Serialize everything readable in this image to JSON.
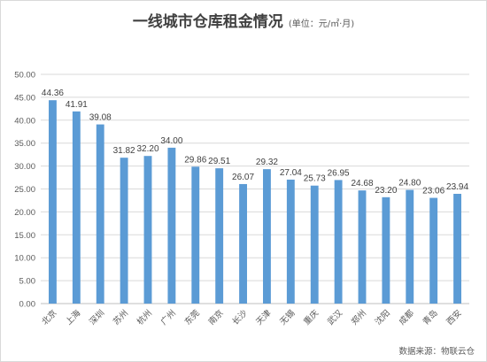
{
  "chart_data": {
    "type": "bar",
    "title": "一线城市仓库租金情况",
    "subtitle": "(单位：元/㎡·月)",
    "categories": [
      "北京",
      "上海",
      "深圳",
      "苏州",
      "杭州",
      "广州",
      "东莞",
      "南京",
      "长沙",
      "天津",
      "无锡",
      "重庆",
      "武汉",
      "郑州",
      "沈阳",
      "成都",
      "青岛",
      "西安"
    ],
    "values": [
      44.36,
      41.91,
      39.08,
      31.82,
      32.2,
      34.0,
      29.86,
      29.51,
      26.07,
      29.32,
      27.04,
      25.73,
      26.95,
      24.68,
      23.2,
      24.8,
      23.06,
      23.94
    ],
    "value_labels": [
      "44.36",
      "41.91",
      "39.08",
      "31.82",
      "32.20",
      "34.00",
      "29.86",
      "29.51",
      "26.07",
      "29.32",
      "27.04",
      "25.73",
      "26.95",
      "24.68",
      "23.20",
      "24.80",
      "23.06",
      "23.94"
    ],
    "ylim": [
      0,
      50
    ],
    "yticks": [
      "0.00",
      "5.00",
      "10.00",
      "15.00",
      "20.00",
      "25.00",
      "30.00",
      "35.00",
      "40.00",
      "45.00",
      "50.00"
    ],
    "grid": true,
    "bar_color": "#5b9bd5",
    "grid_color": "#d9d9d9",
    "source": "数据来源：物联云仓"
  }
}
